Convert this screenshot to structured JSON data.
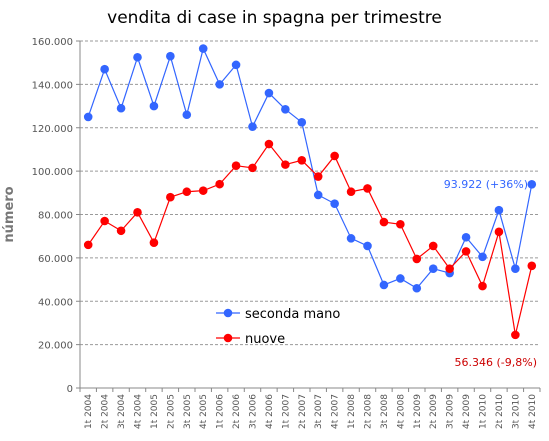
{
  "chart_data": {
    "type": "line",
    "title": "vendita di case in spagna per trimestre",
    "ylabel": "número",
    "xlabel": "",
    "ylim": [
      0,
      160000
    ],
    "yticks": [
      0,
      20000,
      40000,
      60000,
      80000,
      100000,
      120000,
      140000,
      160000
    ],
    "ytick_labels": [
      "0",
      "20.000",
      "40.000",
      "60.000",
      "80.000",
      "100.000",
      "120.000",
      "140.000",
      "160.000"
    ],
    "grid": "horizontal dashed",
    "legend_position": "bottom-center",
    "categories": [
      "1t 2004",
      "2t 2004",
      "3t 2004",
      "4t 2004",
      "1t 2005",
      "2t 2005",
      "3t 2005",
      "4t 2005",
      "1t 2006",
      "2t 2006",
      "3t 2006",
      "4t 2006",
      "1t 2007",
      "2t 2007",
      "3t 2007",
      "4t 2007",
      "1t 2008",
      "2t 2008",
      "3t 2008",
      "4t 2008",
      "1t 2009",
      "2t 2009",
      "3t 2009",
      "4t 2009",
      "1t 2010",
      "2t 2010",
      "3t 2010",
      "4t 2010"
    ],
    "series": [
      {
        "name": "seconda mano",
        "color": "#3366ff",
        "values": [
          125000,
          147000,
          129000,
          152500,
          130000,
          153000,
          126000,
          156500,
          140000,
          149000,
          120500,
          136000,
          128500,
          122500,
          89000,
          85000,
          69000,
          65500,
          47500,
          50500,
          46000,
          55000,
          53000,
          69500,
          60500,
          82000,
          55000,
          93922
        ]
      },
      {
        "name": "nuove",
        "color": "#ff0000",
        "values": [
          66000,
          77000,
          72500,
          81000,
          67000,
          88000,
          90500,
          91000,
          94000,
          102500,
          101500,
          112500,
          103000,
          105000,
          97500,
          107000,
          90500,
          92000,
          76500,
          75500,
          59500,
          65500,
          55000,
          63000,
          47000,
          72000,
          24500,
          56346
        ]
      }
    ],
    "annotations": [
      {
        "text": "93.922 (+36%)",
        "color": "#3366ff"
      },
      {
        "text": "56.346 (-9,8%)",
        "color": "#cc0000"
      }
    ]
  }
}
